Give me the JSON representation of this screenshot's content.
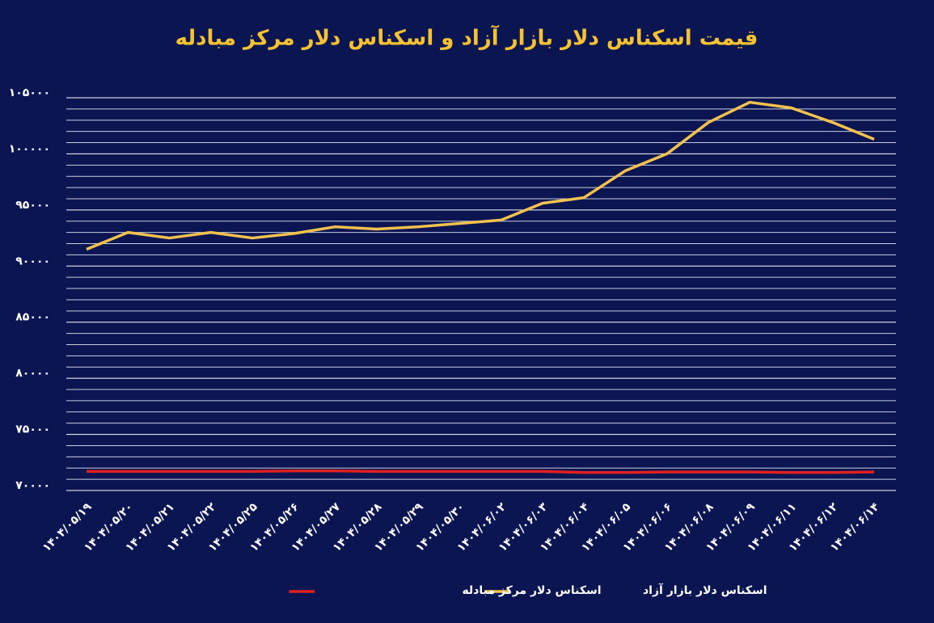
{
  "chart_data": {
    "type": "line",
    "title": "قیمت اسکناس دلار بازار آزاد و اسکناس دلار مرکز مبادله",
    "categories": [
      "۱۴۰۴/۰۵/۱۹",
      "۱۴۰۴/۰۵/۲۰",
      "۱۴۰۴/۰۵/۲۱",
      "۱۴۰۴/۰۵/۲۲",
      "۱۴۰۴/۰۵/۲۵",
      "۱۴۰۴/۰۵/۲۶",
      "۱۴۰۴/۰۵/۲۷",
      "۱۴۰۴/۰۵/۲۸",
      "۱۴۰۴/۰۵/۲۹",
      "۱۴۰۴/۰۵/۳۰",
      "۱۴۰۴/۰۶/۰۲",
      "۱۴۰۴/۰۶/۰۳",
      "۱۴۰۴/۰۶/۰۴",
      "۱۴۰۴/۰۶/۰۵",
      "۱۴۰۴/۰۶/۰۶",
      "۱۴۰۴/۰۶/۰۸",
      "۱۴۰۴/۰۶/۰۹",
      "۱۴۰۴/۰۶/۱۱",
      "۱۴۰۴/۰۶/۱۲",
      "۱۴۰۴/۰۶/۱۴"
    ],
    "series": [
      {
        "name": "اسکناس دلار بازار آزاد",
        "color": "#f2c14e",
        "values": [
          91500,
          93000,
          92500,
          93000,
          92500,
          92900,
          93500,
          93300,
          93500,
          93800,
          94100,
          95600,
          96100,
          98500,
          100000,
          102800,
          104600,
          104100,
          102800,
          101300
        ]
      },
      {
        "name": "اسکناس دلار مرکز مبادله",
        "color": "#e0201e",
        "values": [
          71700,
          71700,
          71700,
          71700,
          71700,
          71750,
          71750,
          71700,
          71700,
          71700,
          71700,
          71700,
          71600,
          71600,
          71650,
          71650,
          71650,
          71600,
          71600,
          71650
        ]
      }
    ],
    "ylim": [
      70000,
      105000
    ],
    "yticks": [
      {
        "value": 70000,
        "label": "۷۰۰۰۰"
      },
      {
        "value": 75000,
        "label": "۷۵۰۰۰"
      },
      {
        "value": 80000,
        "label": "۸۰۰۰۰"
      },
      {
        "value": 85000,
        "label": "۸۵۰۰۰"
      },
      {
        "value": 90000,
        "label": "۹۰۰۰۰"
      },
      {
        "value": 95000,
        "label": "۹۵۰۰۰"
      },
      {
        "value": 100000,
        "label": "۱۰۰۰۰۰"
      },
      {
        "value": 105000,
        "label": "۱۰۵۰۰۰"
      }
    ],
    "grid": true
  }
}
